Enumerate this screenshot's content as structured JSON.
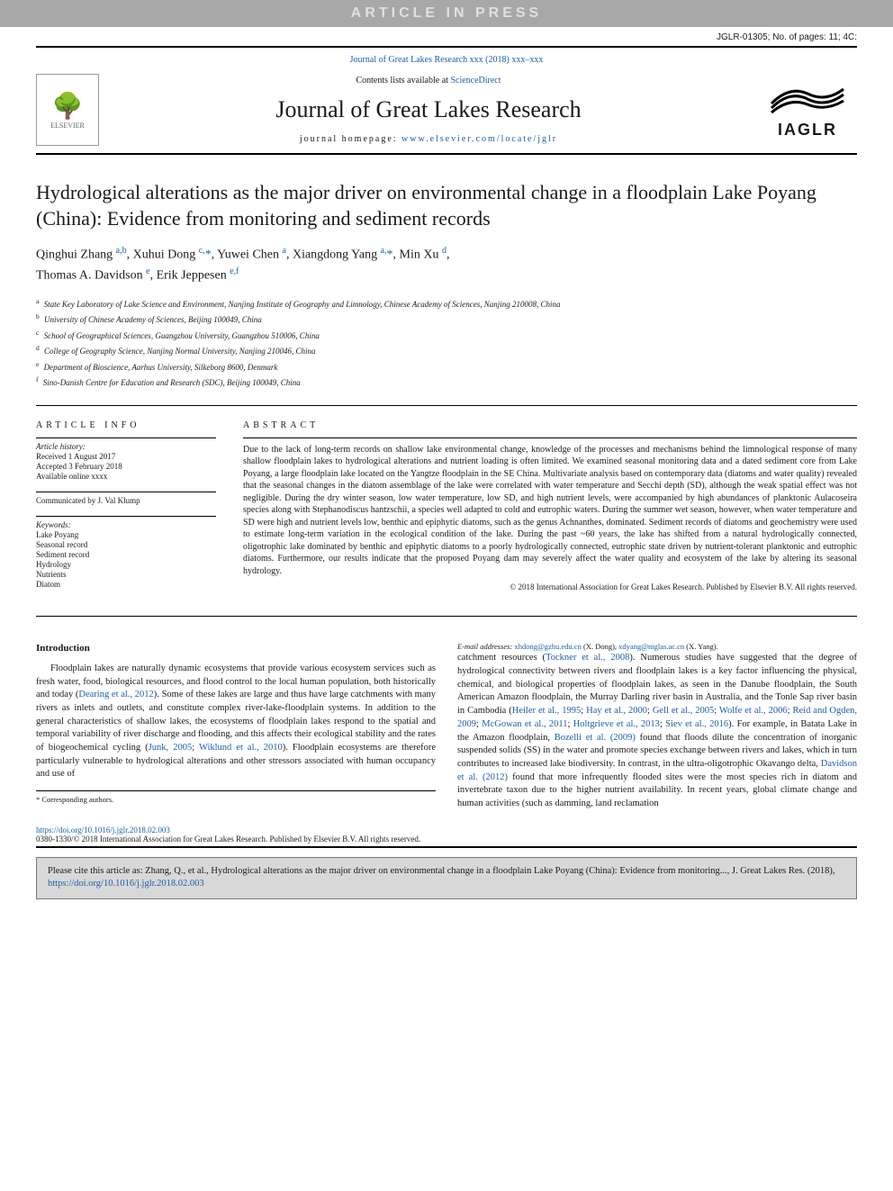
{
  "banner": "ARTICLE IN PRESS",
  "jglr_id": "JGLR-01305; No. of pages: 11; 4C:",
  "journal_link": "Journal of Great Lakes Research xxx (2018) xxx–xxx",
  "contents_line_prefix": "Contents lists available at ",
  "contents_line_link": "ScienceDirect",
  "journal_title": "Journal of Great Lakes Research",
  "homepage_prefix": "journal homepage: ",
  "homepage_link": "www.elsevier.com/locate/jglr",
  "elsevier_label": "ELSEVIER",
  "iaglr_label": "IAGLR",
  "article_title": "Hydrological alterations as the major driver on environmental change in a floodplain Lake Poyang (China): Evidence from monitoring and sediment records",
  "authors_html": "Qinghui Zhang <sup>a,b</sup>, Xuhui Dong <sup>c,</sup><span class='star'>*</span>, Yuwei Chen <sup>a</sup>, Xiangdong Yang <sup>a,</sup><span class='star'>*</span>, Min Xu <sup>d</sup>,<br>Thomas A. Davidson <sup>e</sup>, Erik Jeppesen <sup>e,f</sup>",
  "affiliations": [
    {
      "sup": "a",
      "text": "State Key Laboratory of Lake Science and Environment, Nanjing Institute of Geography and Limnology, Chinese Academy of Sciences, Nanjing 210008, China"
    },
    {
      "sup": "b",
      "text": "University of Chinese Academy of Sciences, Beijing 100049, China"
    },
    {
      "sup": "c",
      "text": "School of Geographical Sciences, Guangzhou University, Guangzhou 510006, China"
    },
    {
      "sup": "d",
      "text": "College of Geography Science, Nanjing Normal University, Nanjing 210046, China"
    },
    {
      "sup": "e",
      "text": "Department of Bioscience, Aarhus University, Silkeborg 8600, Denmark"
    },
    {
      "sup": "f",
      "text": "Sino-Danish Centre for Education and Research (SDC), Beijing 100049, China"
    }
  ],
  "info": {
    "label": "article info",
    "history_head": "Article history:",
    "received": "Received 1 August 2017",
    "accepted": "Accepted 3 February 2018",
    "available": "Available online xxxx",
    "communicated": "Communicated by J. Val Klump",
    "keywords_head": "Keywords:",
    "keywords": [
      "Lake Poyang",
      "Seasonal record",
      "Sediment record",
      "Hydrology",
      "Nutrients",
      "Diatom"
    ]
  },
  "abstract": {
    "label": "abstract",
    "text": "Due to the lack of long-term records on shallow lake environmental change, knowledge of the processes and mechanisms behind the limnological response of many shallow floodplain lakes to hydrological alterations and nutrient loading is often limited. We examined seasonal monitoring data and a dated sediment core from Lake Poyang, a large floodplain lake located on the Yangtze floodplain in the SE China. Multivariate analysis based on contemporary data (diatoms and water quality) revealed that the seasonal changes in the diatom assemblage of the lake were correlated with water temperature and Secchi depth (SD), although the weak spatial effect was not negligible. During the dry winter season, low water temperature, low SD, and high nutrient levels, were accompanied by high abundances of planktonic Aulacoseira species along with Stephanodiscus hantzschii, a species well adapted to cold and eutrophic waters. During the summer wet season, however, when water temperature and SD were high and nutrient levels low, benthic and epiphytic diatoms, such as the genus Achnanthes, dominated. Sediment records of diatoms and geochemistry were used to estimate long-term variation in the ecological condition of the lake. During the past ~60 years, the lake has shifted from a natural hydrologically connected, oligotrophic lake dominated by benthic and epiphytic diatoms to a poorly hydrologically connected, eutrophic state driven by nutrient-tolerant planktonic and eutrophic diatoms. Furthermore, our results indicate that the proposed Poyang dam may severely affect the water quality and ecosystem of the lake by altering its seasonal hydrology.",
    "copyright": "© 2018 International Association for Great Lakes Research. Published by Elsevier B.V. All rights reserved."
  },
  "body": {
    "heading": "Introduction",
    "col1_html": "Floodplain lakes are naturally dynamic ecosystems that provide various ecosystem services such as fresh water, food, biological resources, and flood control to the local human population, both historically and today (<a href='#'>Dearing et al., 2012</a>). Some of these lakes are large and thus have large catchments with many rivers as inlets and outlets, and constitute complex river-lake-floodplain systems. In addition to the general characteristics of shallow lakes, the ecosystems of floodplain lakes respond to the spatial and temporal variability of river discharge and flooding, and this affects their ecological stability and the rates of biogeochemical cycling (<a href='#'>Junk, 2005</a>; <a href='#'>Wiklund et al., 2010</a>). Floodplain ecosystems are therefore particularly vulnerable to hydrological alterations and other stressors associated with human occupancy and use of",
    "col2_html": "catchment resources (<a href='#'>Tockner et al., 2008</a>). Numerous studies have suggested that the degree of hydrological connectivity between rivers and floodplain lakes is a key factor influencing the physical, chemical, and biological properties of floodplain lakes, as seen in the Danube floodplain, the South American Amazon floodplain, the Murray Darling river basin in Australia, and the Tonle Sap river basin in Cambodia (<a href='#'>Heiler et al., 1995</a>; <a href='#'>Hay et al., 2000</a>; <a href='#'>Gell et al., 2005</a>; <a href='#'>Wolfe et al., 2006</a>; <a href='#'>Reid and Ogden, 2009</a>; <a href='#'>McGowan et al., 2011</a>; <a href='#'>Holtgrieve et al., 2013</a>; <a href='#'>Siev et al., 2016</a>). For example, in Batata Lake in the Amazon floodplain, <a href='#'>Bozelli et al. (2009)</a> found that floods dilute the concentration of inorganic suspended solids (SS) in the water and promote species exchange between rivers and lakes, which in turn contributes to increased lake biodiversity. In contrast, in the ultra-oligotrophic Okavango delta, <a href='#'>Davidson et al. (2012)</a> found that more infrequently flooded sites were the most species rich in diatom and invertebrate taxon due to the higher nutrient availability. In recent years, global climate change and human activities (such as damming, land reclamation"
  },
  "footnote": {
    "star": "* Corresponding authors.",
    "emails_label": "E-mail addresses:",
    "email1": "xhdong@gzhu.edu.cn",
    "email1_name": "(X. Dong),",
    "email2": "xdyang@niglas.ac.cn",
    "email2_name": "(X. Yang)."
  },
  "doi": {
    "link": "https://doi.org/10.1016/j.jglr.2018.02.003",
    "issn": "0380-1330/© 2018 International Association for Great Lakes Research. Published by Elsevier B.V. All rights reserved."
  },
  "citebox": {
    "text_prefix": "Please cite this article as: Zhang, Q., et al., Hydrological alterations as the major driver on environmental change in a floodplain Lake Poyang (China): Evidence from monitoring..., J. Great Lakes Res. (2018), ",
    "link": "https://doi.org/10.1016/j.jglr.2018.02.003"
  },
  "colors": {
    "link": "#1a5faa",
    "banner_bg": "#a8a8a8",
    "banner_fg": "#e0e0e0",
    "citebox_bg": "#d8d8d8"
  }
}
